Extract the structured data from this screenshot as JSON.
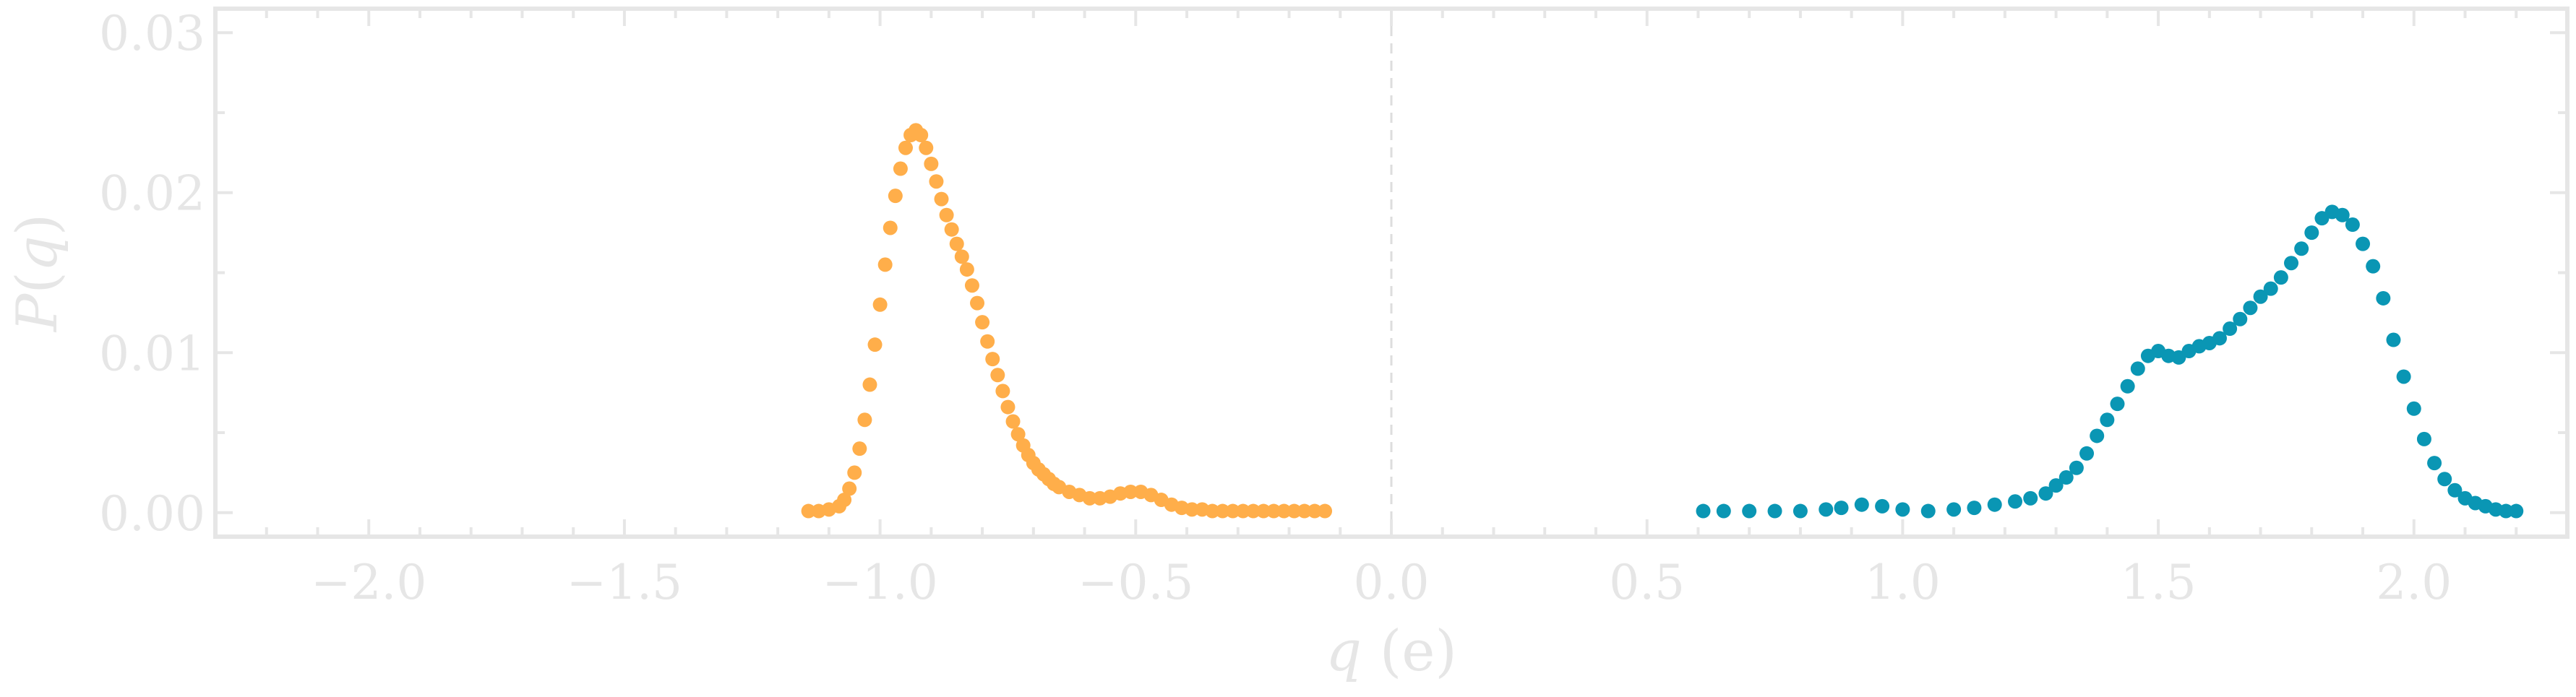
{
  "chart_data": {
    "type": "scatter",
    "xlabel": {
      "var": "q",
      "unit": " (e)"
    },
    "ylabel": {
      "var": "q",
      "prefix": "P(",
      "suffix": ")"
    },
    "xlim": [
      -2.3,
      2.3
    ],
    "ylim": [
      -0.0015,
      0.0315
    ],
    "x_ticks": [
      -2.0,
      -1.5,
      -1.0,
      -0.5,
      0.0,
      0.5,
      1.0,
      1.5,
      2.0
    ],
    "x_tick_labels": [
      "−2.0",
      "−1.5",
      "−1.0",
      "−0.5",
      "0.0",
      "0.5",
      "1.0",
      "1.5",
      "2.0"
    ],
    "y_ticks": [
      0.0,
      0.01,
      0.02,
      0.03
    ],
    "y_tick_labels": [
      "0.00",
      "0.01",
      "0.02",
      "0.03"
    ],
    "reference_line_x": 0.0,
    "grid": false,
    "colors": {
      "axes": "#e6e6e6",
      "reference_line": "#dddddd",
      "series_1": "#ffae4a",
      "series_2": "#0a96b4"
    },
    "series": [
      {
        "color": "#ffae4a",
        "x": [
          -1.14,
          -1.12,
          -1.1,
          -1.08,
          -1.07,
          -1.06,
          -1.05,
          -1.04,
          -1.03,
          -1.02,
          -1.01,
          -1.0,
          -0.99,
          -0.98,
          -0.97,
          -0.96,
          -0.95,
          -0.94,
          -0.93,
          -0.92,
          -0.91,
          -0.9,
          -0.89,
          -0.88,
          -0.87,
          -0.86,
          -0.85,
          -0.84,
          -0.83,
          -0.82,
          -0.81,
          -0.8,
          -0.79,
          -0.78,
          -0.77,
          -0.76,
          -0.75,
          -0.74,
          -0.73,
          -0.72,
          -0.71,
          -0.7,
          -0.69,
          -0.68,
          -0.67,
          -0.66,
          -0.65,
          -0.63,
          -0.61,
          -0.59,
          -0.57,
          -0.55,
          -0.53,
          -0.51,
          -0.49,
          -0.47,
          -0.45,
          -0.43,
          -0.41,
          -0.39,
          -0.37,
          -0.35,
          -0.33,
          -0.31,
          -0.29,
          -0.27,
          -0.25,
          -0.23,
          -0.21,
          -0.19,
          -0.17,
          -0.15,
          -0.13
        ],
        "y": [
          0.0001,
          0.0001,
          0.0002,
          0.0004,
          0.0008,
          0.0015,
          0.0025,
          0.004,
          0.0058,
          0.008,
          0.0105,
          0.013,
          0.0155,
          0.0178,
          0.0198,
          0.0215,
          0.0228,
          0.0236,
          0.0239,
          0.0236,
          0.0228,
          0.0218,
          0.0207,
          0.0196,
          0.0186,
          0.0177,
          0.0168,
          0.016,
          0.0152,
          0.0142,
          0.0131,
          0.0119,
          0.0107,
          0.0096,
          0.0086,
          0.0076,
          0.0066,
          0.0057,
          0.0049,
          0.0042,
          0.0036,
          0.0031,
          0.0027,
          0.0024,
          0.0021,
          0.0018,
          0.0016,
          0.0013,
          0.0011,
          0.0009,
          0.0009,
          0.001,
          0.0012,
          0.0013,
          0.0013,
          0.0011,
          0.0008,
          0.0005,
          0.0003,
          0.0002,
          0.0002,
          0.0001,
          0.0001,
          0.0001,
          0.0001,
          0.0001,
          0.0001,
          0.0001,
          0.0001,
          0.0001,
          0.0001,
          0.0001,
          0.0001
        ]
      },
      {
        "color": "#0a96b4",
        "x": [
          0.61,
          0.65,
          0.7,
          0.75,
          0.8,
          0.85,
          0.88,
          0.92,
          0.96,
          1.0,
          1.05,
          1.1,
          1.14,
          1.18,
          1.22,
          1.25,
          1.28,
          1.3,
          1.32,
          1.34,
          1.36,
          1.38,
          1.4,
          1.42,
          1.44,
          1.46,
          1.48,
          1.5,
          1.52,
          1.54,
          1.56,
          1.58,
          1.6,
          1.62,
          1.64,
          1.66,
          1.68,
          1.7,
          1.72,
          1.74,
          1.76,
          1.78,
          1.8,
          1.82,
          1.84,
          1.86,
          1.88,
          1.9,
          1.92,
          1.94,
          1.96,
          1.98,
          2.0,
          2.02,
          2.04,
          2.06,
          2.08,
          2.1,
          2.12,
          2.14,
          2.16,
          2.18,
          2.2
        ],
        "y": [
          0.0001,
          0.0001,
          0.0001,
          0.0001,
          0.0001,
          0.0002,
          0.0003,
          0.0005,
          0.0004,
          0.0002,
          0.0001,
          0.0002,
          0.0003,
          0.0005,
          0.0007,
          0.0009,
          0.0012,
          0.0017,
          0.0022,
          0.0028,
          0.0037,
          0.0048,
          0.0058,
          0.0068,
          0.0079,
          0.009,
          0.0098,
          0.0101,
          0.0098,
          0.0097,
          0.0101,
          0.0104,
          0.0106,
          0.0109,
          0.0115,
          0.0121,
          0.0128,
          0.0135,
          0.014,
          0.0147,
          0.0156,
          0.0165,
          0.0175,
          0.0184,
          0.0188,
          0.0186,
          0.018,
          0.0168,
          0.0154,
          0.0134,
          0.0108,
          0.0085,
          0.0065,
          0.0046,
          0.0031,
          0.0021,
          0.0014,
          0.0009,
          0.0006,
          0.0004,
          0.0002,
          0.0001,
          0.0001
        ]
      }
    ]
  }
}
